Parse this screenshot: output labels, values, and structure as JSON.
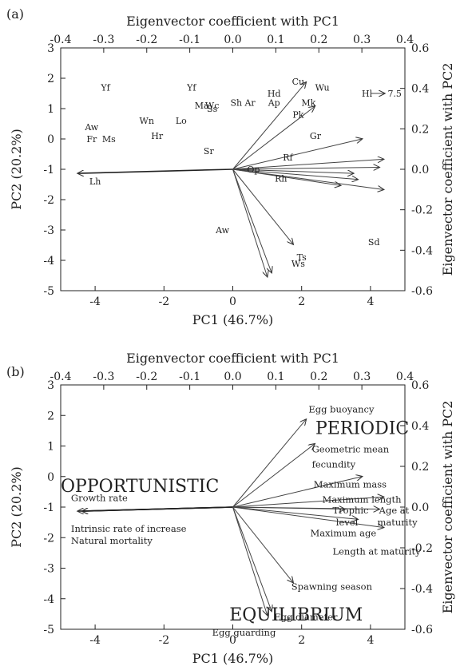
{
  "chart_data": [
    {
      "type": "scatter",
      "panel": "(a)",
      "xlabel": "PC1 (46.7%)",
      "ylabel": "PC2 (20.2%)",
      "x2label": "Eigenvector coefficient with PC1",
      "y2label": "Eigenvector coefficient with PC2",
      "xlim": [
        -5,
        5
      ],
      "ylim": [
        -5,
        3
      ],
      "x2lim": [
        -0.4,
        0.4
      ],
      "y2lim": [
        -0.6,
        0.6
      ],
      "xticks": [
        "-4",
        "-2",
        "0",
        "2",
        "4"
      ],
      "xtick_values": [
        -4,
        -2,
        0,
        2,
        4
      ],
      "yticks": [
        "-5",
        "-4",
        "-3",
        "-2",
        "-1",
        "0",
        "1",
        "2",
        "3"
      ],
      "ytick_values": [
        -5,
        -4,
        -3,
        -2,
        -1,
        0,
        1,
        2,
        3
      ],
      "x2ticks": [
        "-0.4",
        "-0.3",
        "-0.2",
        "-0.1",
        "0.0",
        "0.1",
        "0.2",
        "0.3",
        "0.4"
      ],
      "x2tick_values": [
        -0.4,
        -0.3,
        -0.2,
        -0.1,
        0.0,
        0.1,
        0.2,
        0.3,
        0.4
      ],
      "y2ticks": [
        "-0.6",
        "-0.4",
        "-0.2",
        "0.0",
        "0.2",
        "0.4",
        "0.6"
      ],
      "y2tick_values": [
        -0.6,
        -0.4,
        -0.2,
        0.0,
        0.2,
        0.4,
        0.6
      ],
      "points": [
        {
          "label": "Yf",
          "x": -3.7,
          "y": 1.7
        },
        {
          "label": "Aw",
          "x": -4.1,
          "y": 0.4
        },
        {
          "label": "Fr",
          "x": -4.1,
          "y": 0.0
        },
        {
          "label": "Ms",
          "x": -3.6,
          "y": 0.0
        },
        {
          "label": "Wn",
          "x": -2.5,
          "y": 0.6
        },
        {
          "label": "Hr",
          "x": -2.2,
          "y": 0.1
        },
        {
          "label": "Lo",
          "x": -1.5,
          "y": 0.6
        },
        {
          "label": "Yf",
          "x": -1.2,
          "y": 1.7
        },
        {
          "label": "Ma",
          "x": -0.9,
          "y": 1.1
        },
        {
          "label": "Wc",
          "x": -0.6,
          "y": 1.1
        },
        {
          "label": "Ss",
          "x": -0.6,
          "y": 1.0
        },
        {
          "label": "Sh",
          "x": 0.1,
          "y": 1.2
        },
        {
          "label": "Ar",
          "x": 0.5,
          "y": 1.2
        },
        {
          "label": "Hd",
          "x": 1.2,
          "y": 1.5
        },
        {
          "label": "Ap",
          "x": 1.2,
          "y": 1.2
        },
        {
          "label": "Cu",
          "x": 1.9,
          "y": 1.9
        },
        {
          "label": "Wu",
          "x": 2.6,
          "y": 1.7
        },
        {
          "label": "Mk",
          "x": 2.2,
          "y": 1.2
        },
        {
          "label": "Pk",
          "x": 1.9,
          "y": 0.8
        },
        {
          "label": "Gr",
          "x": 2.4,
          "y": 0.1
        },
        {
          "label": "Sr",
          "x": -0.7,
          "y": -0.4
        },
        {
          "label": "Rf",
          "x": 1.6,
          "y": -0.6
        },
        {
          "label": "Op",
          "x": 0.6,
          "y": -1.0
        },
        {
          "label": "Rh",
          "x": 1.4,
          "y": -1.3
        },
        {
          "label": "Lh",
          "x": -4.0,
          "y": -1.4
        },
        {
          "label": "Aw",
          "x": -0.3,
          "y": -3.0
        },
        {
          "label": "Ts",
          "x": 2.0,
          "y": -3.9
        },
        {
          "label": "Ws",
          "x": 1.9,
          "y": -4.1
        },
        {
          "label": "Sd",
          "x": 4.1,
          "y": -3.4
        },
        {
          "label": "Hl",
          "x": 3.9,
          "y": 1.5
        }
      ],
      "annotation": {
        "text": "7.5",
        "x": 4.5,
        "y": 1.5,
        "arrow_from_x": 4.0
      },
      "vectors": [
        {
          "x": -0.36,
          "y": -0.02
        },
        {
          "x": 0.17,
          "y": 0.43
        },
        {
          "x": 0.19,
          "y": 0.31
        },
        {
          "x": 0.3,
          "y": 0.15
        },
        {
          "x": 0.35,
          "y": 0.05
        },
        {
          "x": 0.34,
          "y": 0.01
        },
        {
          "x": 0.28,
          "y": -0.02
        },
        {
          "x": 0.29,
          "y": -0.05
        },
        {
          "x": 0.35,
          "y": -0.1
        },
        {
          "x": 0.25,
          "y": -0.08
        },
        {
          "x": 0.14,
          "y": -0.37
        },
        {
          "x": 0.09,
          "y": -0.51
        },
        {
          "x": 0.08,
          "y": -0.53
        }
      ]
    },
    {
      "type": "scatter",
      "panel": "(b)",
      "xlabel": "PC1 (46.7%)",
      "ylabel": "PC2 (20.2%)",
      "x2label": "Eigenvector coefficient with PC1",
      "y2label": "Eigenvector coefficient with PC2",
      "xlim": [
        -5,
        5
      ],
      "ylim": [
        -5,
        3
      ],
      "x2lim": [
        -0.4,
        0.4
      ],
      "y2lim": [
        -0.6,
        0.6
      ],
      "xticks": [
        "-4",
        "-2",
        "0",
        "2",
        "4"
      ],
      "xtick_values": [
        -4,
        -2,
        0,
        2,
        4
      ],
      "yticks": [
        "-5",
        "-4",
        "-3",
        "-2",
        "-1",
        "0",
        "1",
        "2",
        "3"
      ],
      "ytick_values": [
        -5,
        -4,
        -3,
        -2,
        -1,
        0,
        1,
        2,
        3
      ],
      "x2ticks": [
        "-0.4",
        "-0.3",
        "-0.2",
        "-0.1",
        "0.0",
        "0.1",
        "0.2",
        "0.3",
        "0.4"
      ],
      "x2tick_values": [
        -0.4,
        -0.3,
        -0.2,
        -0.1,
        0.0,
        0.1,
        0.2,
        0.3,
        0.4
      ],
      "y2ticks": [
        "-0.6",
        "-0.4",
        "-0.2",
        "0.0",
        "0.2",
        "0.4",
        "0.6"
      ],
      "y2tick_values": [
        -0.6,
        -0.4,
        -0.2,
        0.0,
        0.2,
        0.4,
        0.6
      ],
      "strategies": [
        {
          "label": "PERIODIC",
          "x": 2.4,
          "y": 1.6
        },
        {
          "label": "OPPORTUNISTIC",
          "x": -5.0,
          "y": -0.3
        },
        {
          "label": "EQUILIBRIUM",
          "x": -0.1,
          "y": -4.5
        }
      ],
      "vectors": [
        {
          "label": "Growth rate",
          "x": -0.36,
          "y": -0.02
        },
        {
          "label": "Intrinsic rate of increase",
          "x": -0.35,
          "y": -0.02
        },
        {
          "label": "Natural mortality",
          "x": -0.35,
          "y": -0.02
        },
        {
          "label": "Egg buoyancy",
          "x": 0.17,
          "y": 0.43
        },
        {
          "label": "Geometric mean fecundity",
          "x": 0.19,
          "y": 0.31
        },
        {
          "label": "Maximum mass",
          "x": 0.3,
          "y": 0.15
        },
        {
          "label": "Maximum length",
          "x": 0.35,
          "y": 0.05
        },
        {
          "label": "Trophic level",
          "x": 0.26,
          "y": -0.01
        },
        {
          "label": "Age at maturity",
          "x": 0.34,
          "y": -0.01
        },
        {
          "label": "Maximum age",
          "x": 0.29,
          "y": -0.06
        },
        {
          "label": "Length at maturity",
          "x": 0.35,
          "y": -0.1
        },
        {
          "label": "Spawning season",
          "x": 0.14,
          "y": -0.37
        },
        {
          "label": "Egg diameter",
          "x": 0.09,
          "y": -0.51
        },
        {
          "label": "Egg guarding",
          "x": 0.08,
          "y": -0.53
        }
      ],
      "vector_labels": [
        {
          "text": "Growth rate",
          "x": -4.7,
          "y": -0.7
        },
        {
          "text": "Intrinsic rate of increase",
          "x": -4.7,
          "y": -1.7
        },
        {
          "text": "Natural mortality",
          "x": -4.7,
          "y": -2.1
        },
        {
          "text": "Egg buoyancy",
          "x": 2.2,
          "y": 2.2
        },
        {
          "text": "Geometric mean",
          "x": 2.3,
          "y": 0.9
        },
        {
          "text": "fecundity",
          "x": 2.3,
          "y": 0.4
        },
        {
          "text": "Maximum mass",
          "x": 2.35,
          "y": -0.25
        },
        {
          "text": "Maximum length",
          "x": 2.6,
          "y": -0.75
        },
        {
          "text": "Trophic",
          "x": 2.9,
          "y": -1.1
        },
        {
          "text": "level",
          "x": 3.0,
          "y": -1.5
        },
        {
          "text": "Age at",
          "x": 4.25,
          "y": -1.1
        },
        {
          "text": "maturity",
          "x": 4.2,
          "y": -1.5
        },
        {
          "text": "Maximum age",
          "x": 2.25,
          "y": -1.85
        },
        {
          "text": "Length at maturity",
          "x": 2.9,
          "y": -2.45
        },
        {
          "text": "Spawning season",
          "x": 1.7,
          "y": -3.6
        },
        {
          "text": "Egg diameter",
          "x": 1.2,
          "y": -4.6
        },
        {
          "text": "Egg guarding",
          "x": -0.6,
          "y": -5.1
        }
      ]
    }
  ]
}
